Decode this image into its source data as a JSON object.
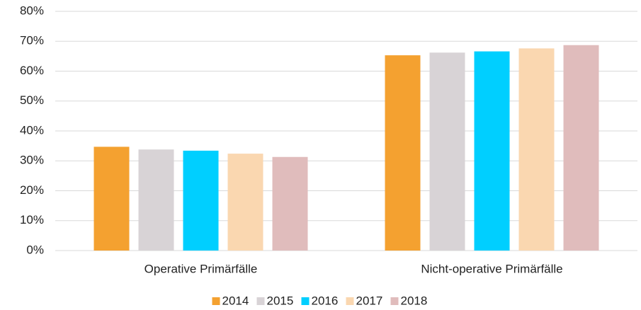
{
  "chart_data": {
    "type": "bar",
    "categories": [
      "Operative Primärfälle",
      "Nicht-operative Primärfälle"
    ],
    "series": [
      {
        "name": "2014",
        "color": "#f4a130",
        "values": [
          34.7,
          65.3
        ]
      },
      {
        "name": "2015",
        "color": "#d8d3d6",
        "values": [
          33.8,
          66.2
        ]
      },
      {
        "name": "2016",
        "color": "#00cfff",
        "values": [
          33.4,
          66.6
        ]
      },
      {
        "name": "2017",
        "color": "#fad7b0",
        "values": [
          32.4,
          67.6
        ]
      },
      {
        "name": "2018",
        "color": "#e0bcbc",
        "values": [
          31.3,
          68.7
        ]
      }
    ],
    "ylim": [
      0,
      80
    ],
    "yticks": [
      {
        "value": 0,
        "label": "0%"
      },
      {
        "value": 10,
        "label": "10%"
      },
      {
        "value": 20,
        "label": "20%"
      },
      {
        "value": 30,
        "label": "30%"
      },
      {
        "value": 40,
        "label": "40%"
      },
      {
        "value": 50,
        "label": "50%"
      },
      {
        "value": 60,
        "label": "60%"
      },
      {
        "value": 70,
        "label": "70%"
      },
      {
        "value": 80,
        "label": "80%"
      }
    ],
    "grid": true,
    "legend": "bottom"
  }
}
